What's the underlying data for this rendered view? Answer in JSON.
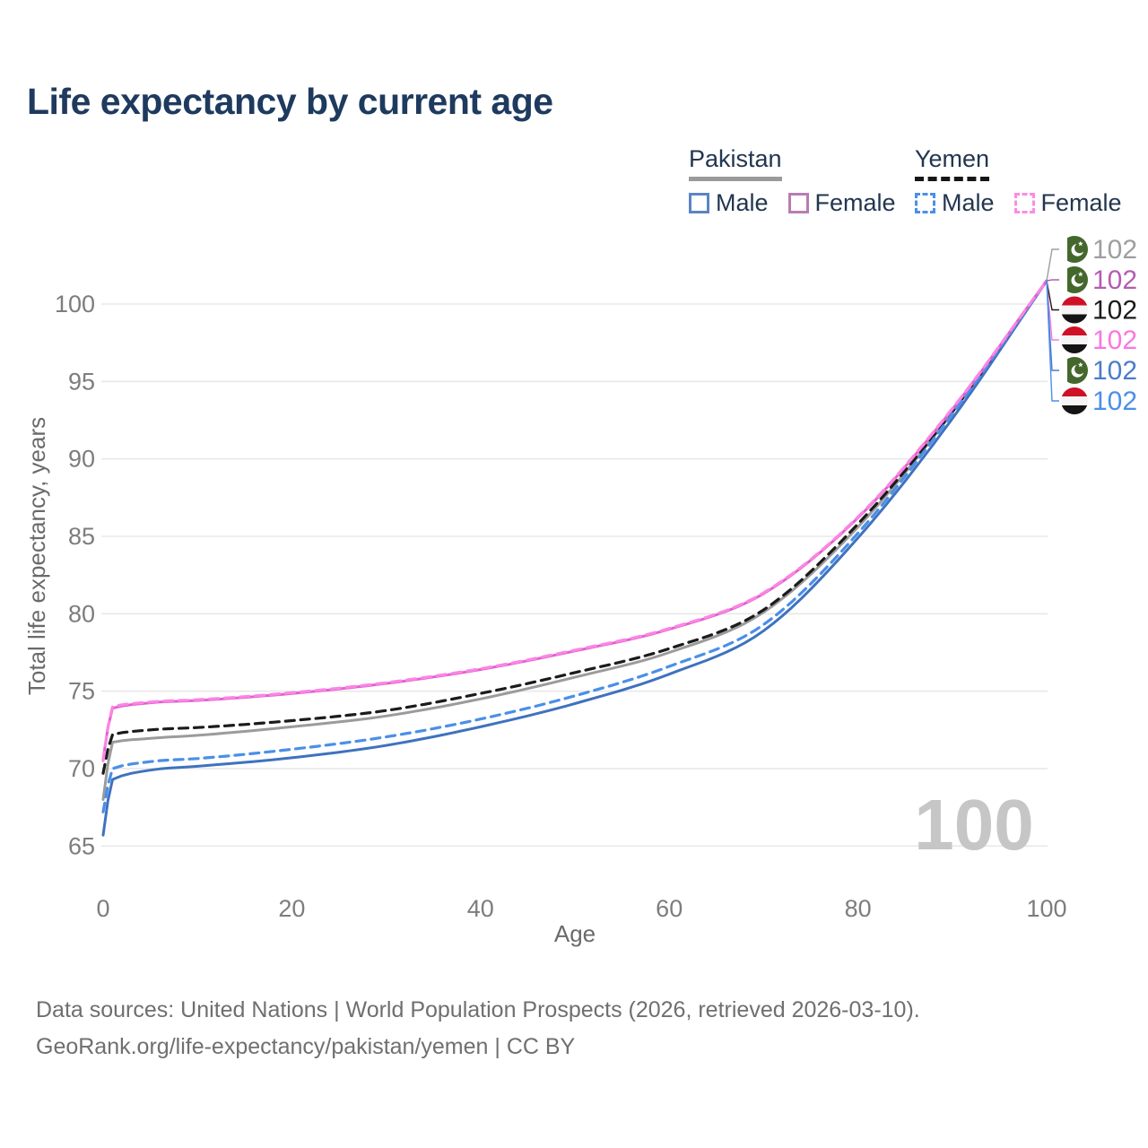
{
  "title": "Life expectancy by current age",
  "legend": {
    "groups": [
      {
        "label": "Pakistan",
        "underline": "solid",
        "items": [
          {
            "label": "Male",
            "color": "#5b84c4"
          },
          {
            "label": "Female",
            "color": "#b87cb4"
          }
        ]
      },
      {
        "label": "Yemen",
        "underline": "dashed",
        "items": [
          {
            "label": "Male",
            "color": "#4a8fe8"
          },
          {
            "label": "Female",
            "color": "#fb8ce2"
          }
        ]
      }
    ]
  },
  "watermark": "100",
  "footer": {
    "line1": "Data sources: United Nations | World Population Prospects (2026, retrieved 2026-03-10).",
    "line2": "GeoRank.org/life-expectancy/pakistan/yemen | CC BY"
  },
  "chart_data": {
    "type": "line",
    "title": "Life expectancy by current age",
    "xlabel": "Age",
    "ylabel": "Total life expectancy, years",
    "xlim": [
      0,
      100
    ],
    "ylim": [
      65,
      102
    ],
    "xticks": [
      0,
      20,
      40,
      60,
      80,
      100
    ],
    "yticks": [
      65,
      70,
      75,
      80,
      85,
      90,
      95,
      100
    ],
    "grid": "horizontal",
    "grid_color": "#e8e8e8",
    "tick_color": "#7d7d7d",
    "axis_label_color": "#6a6a6a",
    "x": [
      0,
      1,
      5,
      10,
      20,
      30,
      40,
      50,
      60,
      70,
      80,
      90,
      100
    ],
    "series": [
      {
        "name": "Pakistan (both sexes)",
        "country": "Pakistan",
        "flag": "pakistan",
        "dash": false,
        "line_color": "#9b9b9b",
        "label_color": "#9e9e9e",
        "row": 0,
        "end_label": "102",
        "values": [
          68.0,
          71.7,
          71.95,
          72.15,
          72.7,
          73.4,
          74.5,
          75.9,
          77.5,
          80.1,
          85.6,
          93.0,
          101.5
        ]
      },
      {
        "name": "Yemen (both sexes)",
        "country": "Yemen",
        "flag": "yemen",
        "dash": true,
        "line_color": "#1b1b1b",
        "label_color": "#1b1b1b",
        "row": 2,
        "end_label": "102",
        "values": [
          69.7,
          72.2,
          72.5,
          72.65,
          73.1,
          73.75,
          74.85,
          76.2,
          77.75,
          80.25,
          85.8,
          93.05,
          101.5
        ]
      },
      {
        "name": "Pakistan Male",
        "country": "Pakistan",
        "flag": "pakistan",
        "dash": false,
        "line_color": "#3f72bf",
        "label_color": "#4a7ccb",
        "row": 4,
        "end_label": "102",
        "values": [
          65.7,
          69.3,
          69.9,
          70.15,
          70.7,
          71.5,
          72.7,
          74.2,
          76.1,
          78.9,
          84.9,
          92.6,
          101.5
        ]
      },
      {
        "name": "Yemen Male",
        "country": "Yemen",
        "flag": "yemen",
        "dash": true,
        "line_color": "#4a8fe8",
        "label_color": "#4a8fe8",
        "row": 5,
        "end_label": "102",
        "values": [
          67.2,
          70.0,
          70.45,
          70.65,
          71.25,
          72.05,
          73.2,
          74.7,
          76.6,
          79.3,
          85.2,
          92.9,
          101.5
        ]
      },
      {
        "name": "Pakistan Female",
        "country": "Pakistan",
        "flag": "pakistan",
        "dash": false,
        "line_color": "#e261ce",
        "label_color": "#b45cb1",
        "row": 1,
        "end_label": "102",
        "values": [
          70.6,
          73.9,
          74.25,
          74.4,
          74.85,
          75.5,
          76.4,
          77.6,
          79.0,
          81.3,
          86.2,
          93.2,
          101.5
        ]
      },
      {
        "name": "Yemen Female",
        "country": "Yemen",
        "flag": "yemen",
        "dash": true,
        "line_color": "#fb85e4",
        "label_color": "#fb76e1",
        "row": 3,
        "end_label": "102",
        "values": [
          70.5,
          74.0,
          74.3,
          74.45,
          74.9,
          75.55,
          76.45,
          77.65,
          79.05,
          81.35,
          86.25,
          93.25,
          101.5
        ]
      }
    ],
    "end_value": 102,
    "legend_position": "top-right"
  }
}
